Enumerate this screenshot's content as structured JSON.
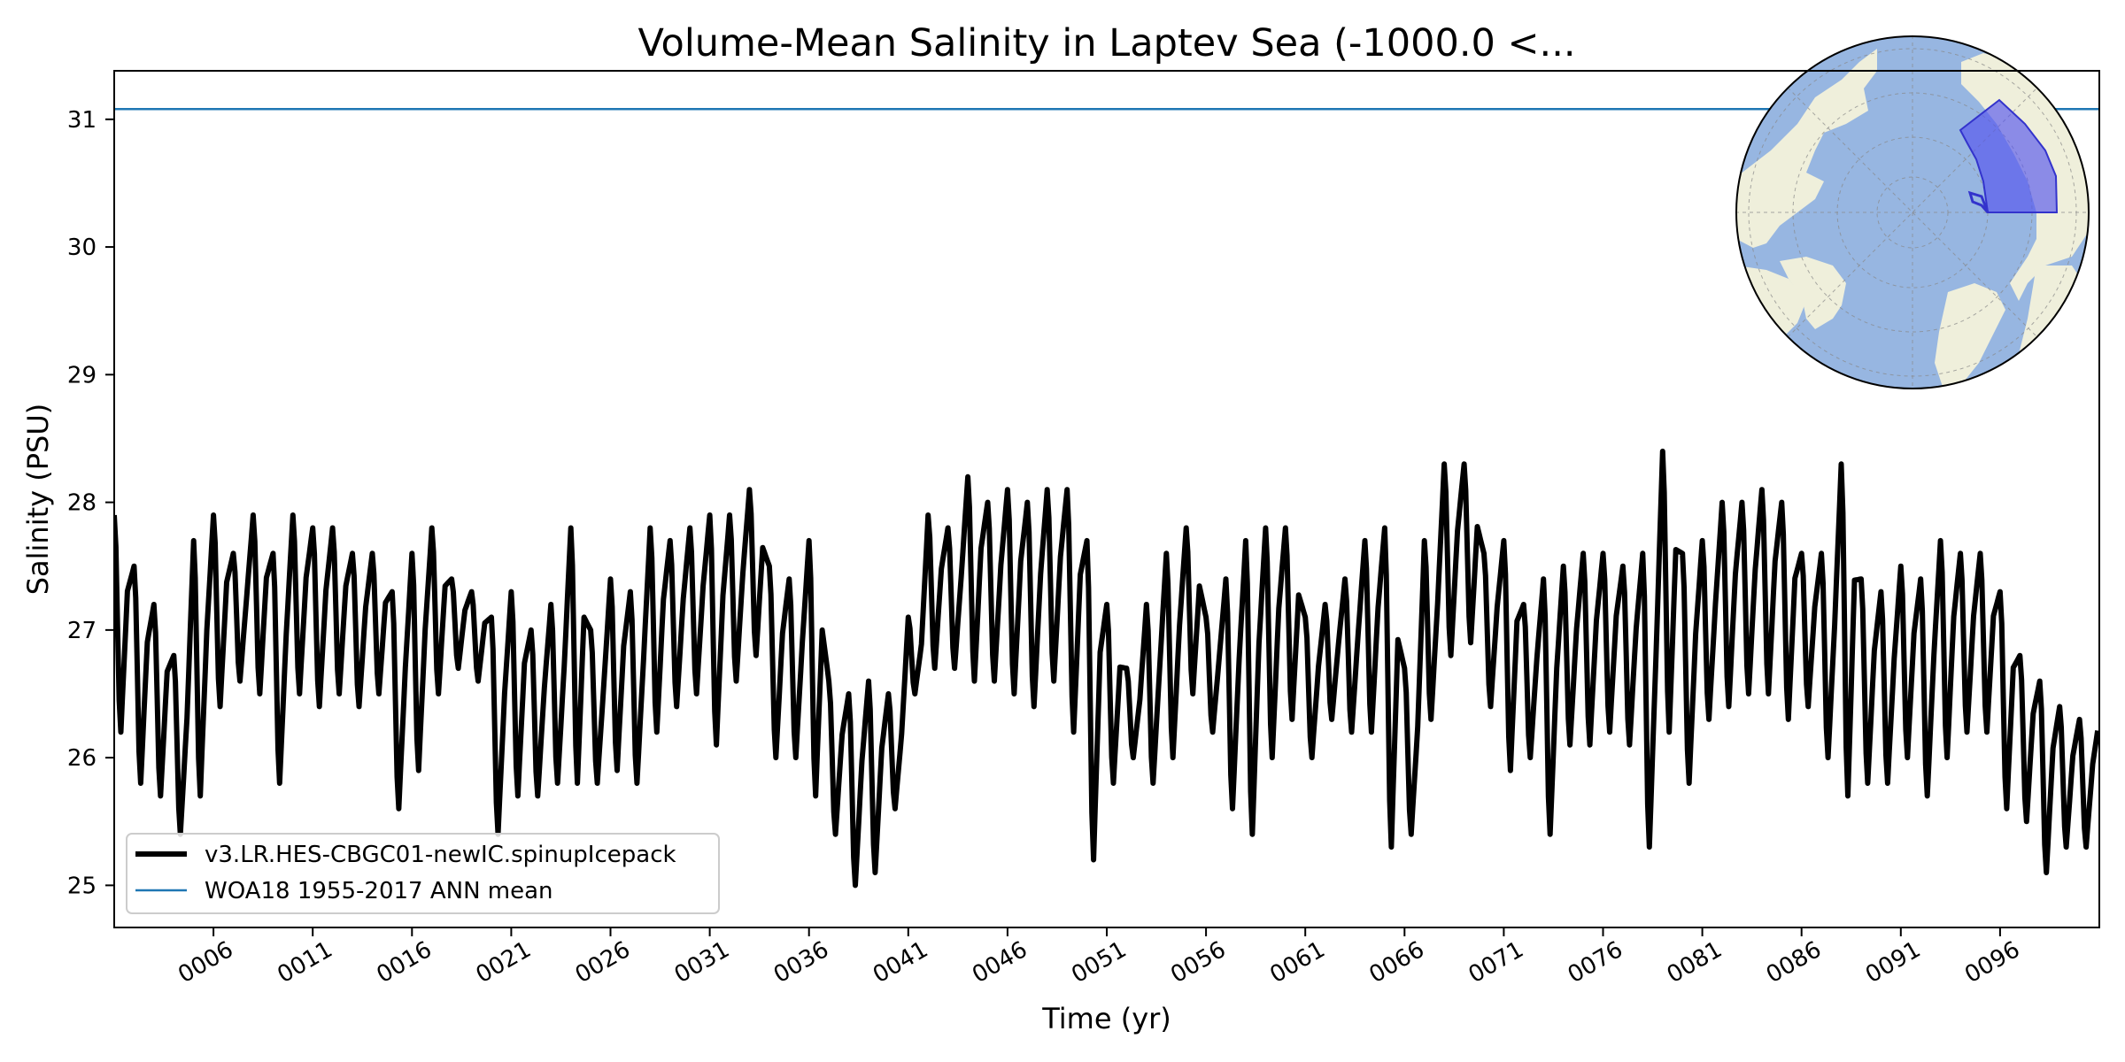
{
  "chart_data": {
    "type": "line",
    "title": "Volume-Mean Salinity in Laptev Sea (-1000.0 <...",
    "xlabel": "Time (yr)",
    "ylabel": "Salinity (PSU)",
    "xlim": [
      1,
      101
    ],
    "ylim": [
      24.67,
      31.38
    ],
    "xticks": [
      6,
      11,
      16,
      21,
      26,
      31,
      36,
      41,
      46,
      51,
      56,
      61,
      66,
      71,
      76,
      81,
      86,
      91,
      96
    ],
    "xtick_labels": [
      "0006",
      "0011",
      "0016",
      "0021",
      "0026",
      "0031",
      "0036",
      "0041",
      "0046",
      "0051",
      "0056",
      "0061",
      "0066",
      "0071",
      "0076",
      "0081",
      "0086",
      "0091",
      "0096"
    ],
    "yticks": [
      25,
      26,
      27,
      28,
      29,
      30,
      31
    ],
    "ytick_labels": [
      "25",
      "26",
      "27",
      "28",
      "29",
      "30",
      "31"
    ],
    "grid": false,
    "legend_position": "lower-left",
    "series": [
      {
        "name": "v3.LR.HES-CBGC01-newIC.spinupIcepack",
        "color": "#000000",
        "style": "thick-solid",
        "seasonal_cycle": true,
        "annual_max": [
          27.9,
          27.5,
          27.2,
          26.8,
          27.7,
          27.9,
          27.6,
          27.9,
          27.6,
          27.9,
          27.8,
          27.8,
          27.6,
          27.6,
          27.3,
          27.6,
          27.8,
          27.4,
          27.3,
          27.1,
          27.3,
          27.0,
          27.2,
          27.8,
          27.0,
          27.4,
          27.3,
          27.8,
          27.7,
          27.8,
          27.9,
          27.9,
          28.1,
          27.5,
          27.4,
          27.7,
          26.6,
          26.5,
          26.6,
          26.5,
          27.1,
          27.9,
          27.8,
          28.2,
          28.0,
          28.1,
          28.0,
          28.1,
          28.1,
          27.7,
          27.2,
          26.7,
          27.2,
          27.6,
          27.8,
          27.1,
          27.4,
          27.7,
          27.8,
          27.8,
          27.1,
          27.2,
          27.4,
          27.7,
          27.8,
          26.7,
          27.7,
          28.3,
          28.3,
          27.6,
          27.7,
          27.2,
          27.4,
          27.5,
          27.6,
          27.6,
          27.5,
          27.6,
          28.4,
          27.6,
          27.7,
          28.0,
          28.0,
          28.1,
          28.0,
          27.6,
          27.6,
          28.3,
          27.4,
          27.3,
          27.5,
          27.4,
          27.7,
          27.6,
          27.6,
          27.3,
          26.8,
          26.6,
          26.4,
          26.3
        ],
        "annual_min": [
          26.2,
          25.8,
          25.7,
          25.4,
          25.7,
          26.4,
          26.6,
          26.5,
          25.8,
          26.5,
          26.4,
          26.5,
          26.4,
          26.5,
          25.6,
          25.9,
          26.5,
          26.7,
          26.6,
          25.4,
          25.7,
          25.7,
          25.8,
          25.8,
          25.8,
          25.9,
          25.8,
          26.2,
          26.4,
          26.5,
          26.1,
          26.6,
          26.8,
          26.0,
          26.0,
          25.7,
          25.4,
          25.0,
          25.1,
          25.6,
          26.5,
          26.7,
          26.7,
          26.6,
          26.6,
          26.5,
          26.4,
          26.6,
          26.2,
          25.2,
          25.8,
          26.0,
          25.8,
          26.0,
          26.5,
          26.2,
          25.6,
          25.4,
          26.0,
          26.3,
          26.0,
          26.3,
          26.2,
          26.2,
          25.3,
          25.4,
          26.3,
          26.8,
          26.9,
          26.4,
          25.9,
          26.0,
          25.4,
          26.1,
          26.1,
          26.2,
          26.1,
          25.3,
          26.2,
          25.8,
          26.3,
          26.4,
          26.5,
          26.5,
          26.3,
          26.4,
          26.0,
          25.7,
          25.8,
          25.8,
          26.0,
          25.7,
          26.0,
          26.2,
          26.2,
          25.6,
          25.5,
          25.1,
          25.3,
          25.3
        ]
      },
      {
        "name": "WOA18 1955-2017 ANN mean",
        "color": "#1f77b4",
        "style": "thin-solid",
        "value": 31.08
      }
    ]
  },
  "inset_map": {
    "type": "north-polar-map",
    "colors": {
      "ocean": "#97b6e1",
      "land": "#efefdb",
      "region_fill": "#5555ee",
      "region_edge": "#3333cc",
      "gridline": "#888888"
    }
  }
}
